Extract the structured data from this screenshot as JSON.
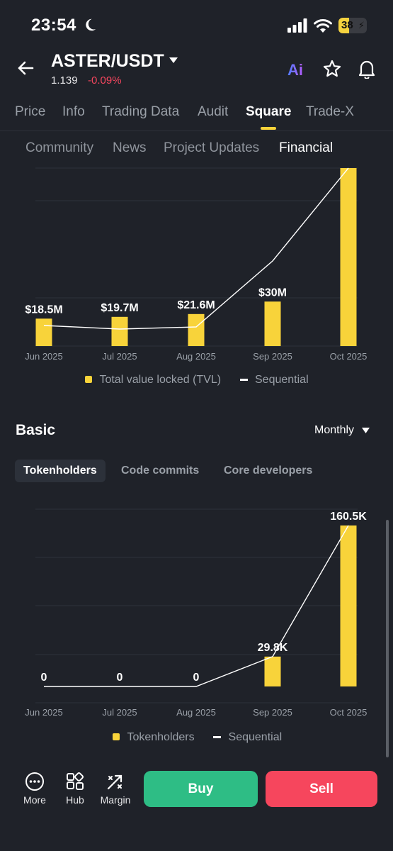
{
  "status": {
    "time": "23:54",
    "battery": "38",
    "battery_level": 0.38
  },
  "header": {
    "pair": "ASTER/USDT",
    "price": "1.139",
    "change": "-0.09%",
    "ai_label": "Ai"
  },
  "tabs": [
    {
      "label": "Price",
      "active": false
    },
    {
      "label": "Info",
      "active": false
    },
    {
      "label": "Trading Data",
      "active": false
    },
    {
      "label": "Audit",
      "active": false
    },
    {
      "label": "Square",
      "active": true
    },
    {
      "label": "Trade-X",
      "active": false
    }
  ],
  "subtabs": [
    {
      "label": "Community",
      "active": false
    },
    {
      "label": "News",
      "active": false
    },
    {
      "label": "Project Updates",
      "active": false
    },
    {
      "label": "Financial",
      "active": true
    }
  ],
  "tvl_legend": {
    "bars": "Total value locked (TVL)",
    "line": "Sequential"
  },
  "basic": {
    "title": "Basic",
    "period": "Monthly",
    "chips": [
      {
        "label": "Tokenholders",
        "active": true
      },
      {
        "label": "Code commits",
        "active": false
      },
      {
        "label": "Core developers",
        "active": false
      }
    ]
  },
  "holders_legend": {
    "bars": "Tokenholders",
    "line": "Sequential"
  },
  "chart_data": [
    {
      "type": "bar",
      "categories": [
        "Jun 2025",
        "Jul 2025",
        "Aug 2025",
        "Sep 2025",
        "Oct 2025"
      ],
      "series": [
        {
          "name": "Total value locked (TVL)",
          "values": [
            18.5,
            19.7,
            21.6,
            30,
            120
          ],
          "labels": [
            "$18.5M",
            "$19.7M",
            "$21.6M",
            "$30M",
            ""
          ]
        },
        {
          "name": "Sequential",
          "type": "line",
          "values": [
            18.5,
            19.7,
            21.6,
            30,
            120
          ]
        }
      ],
      "ylim": [
        0,
        120
      ],
      "grid": true,
      "legend": "bottom",
      "colors": {
        "bar": "#f8d33a",
        "line": "#ffffff"
      }
    },
    {
      "type": "bar",
      "categories": [
        "Jun 2025",
        "Jul 2025",
        "Aug 2025",
        "Sep 2025",
        "Oct 2025"
      ],
      "series": [
        {
          "name": "Tokenholders",
          "values": [
            0,
            0,
            0,
            29.8,
            160.5
          ],
          "labels": [
            "0",
            "0",
            "0",
            "29.8K",
            "160.5K"
          ]
        },
        {
          "name": "Sequential",
          "type": "line",
          "values": [
            0,
            0,
            0,
            29.8,
            160.5
          ]
        }
      ],
      "ylim": [
        0,
        160.5
      ],
      "grid": true,
      "legend": "bottom",
      "colors": {
        "bar": "#f8d33a",
        "line": "#ffffff"
      }
    }
  ],
  "bottom_nav": [
    {
      "label": "More",
      "icon": "more-icon"
    },
    {
      "label": "Hub",
      "icon": "hub-icon"
    },
    {
      "label": "Margin",
      "icon": "margin-icon"
    }
  ],
  "actions": {
    "buy": "Buy",
    "sell": "Sell"
  }
}
